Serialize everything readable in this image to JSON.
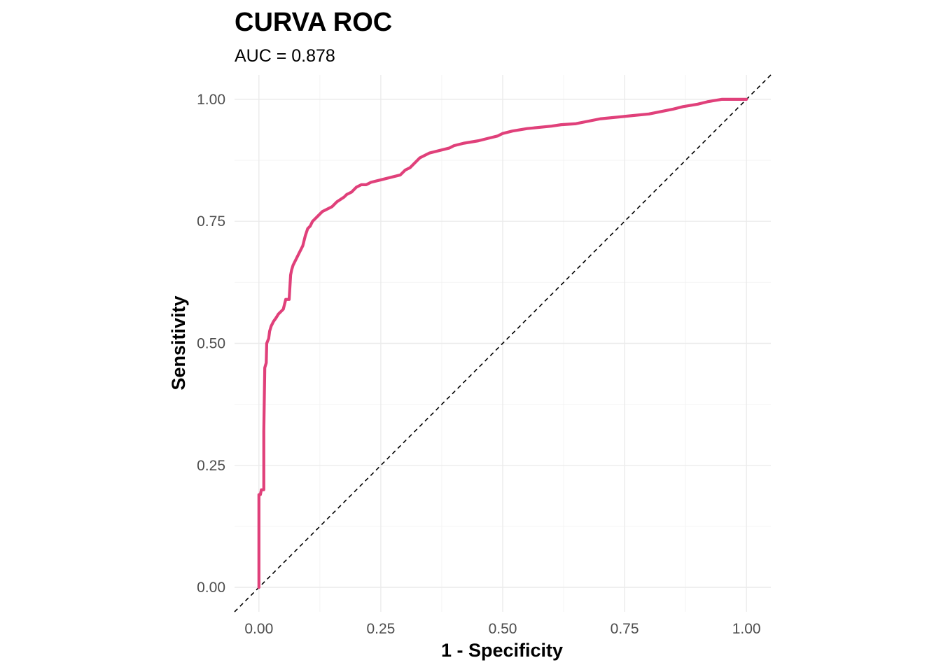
{
  "chart_data": {
    "type": "line",
    "title": "CURVA ROC",
    "subtitle": "AUC = 0.878",
    "xlabel": "1 - Specificity",
    "ylabel": "Sensitivity",
    "xlim": [
      -0.05,
      1.05
    ],
    "ylim": [
      -0.05,
      1.05
    ],
    "x_ticks": [
      0.0,
      0.25,
      0.5,
      0.75,
      1.0
    ],
    "x_tick_labels": [
      "0.00",
      "0.25",
      "0.50",
      "0.75",
      "1.00"
    ],
    "y_ticks": [
      0.0,
      0.25,
      0.5,
      0.75,
      1.0
    ],
    "y_tick_labels": [
      "0.00",
      "0.25",
      "0.50",
      "0.75",
      "1.00"
    ],
    "grid": true,
    "legend": "none",
    "colors": {
      "roc": "#e0407a",
      "reference": "#000000"
    },
    "series": [
      {
        "kind": "roc",
        "x": [
          0.0,
          0.0,
          0.003,
          0.005,
          0.01,
          0.01,
          0.012,
          0.015,
          0.016,
          0.018,
          0.02,
          0.022,
          0.025,
          0.03,
          0.035,
          0.04,
          0.05,
          0.055,
          0.062,
          0.065,
          0.067,
          0.07,
          0.075,
          0.08,
          0.09,
          0.095,
          0.1,
          0.105,
          0.11,
          0.12,
          0.13,
          0.14,
          0.15,
          0.16,
          0.175,
          0.18,
          0.19,
          0.2,
          0.21,
          0.22,
          0.23,
          0.25,
          0.27,
          0.29,
          0.3,
          0.31,
          0.32,
          0.33,
          0.35,
          0.37,
          0.39,
          0.4,
          0.42,
          0.45,
          0.47,
          0.49,
          0.5,
          0.52,
          0.55,
          0.6,
          0.62,
          0.65,
          0.7,
          0.75,
          0.8,
          0.85,
          0.87,
          0.9,
          0.92,
          0.95,
          1.0
        ],
        "y": [
          0.0,
          0.19,
          0.19,
          0.2,
          0.2,
          0.32,
          0.45,
          0.46,
          0.5,
          0.505,
          0.51,
          0.525,
          0.535,
          0.545,
          0.552,
          0.56,
          0.57,
          0.59,
          0.59,
          0.64,
          0.65,
          0.66,
          0.67,
          0.68,
          0.7,
          0.72,
          0.735,
          0.74,
          0.75,
          0.76,
          0.77,
          0.775,
          0.78,
          0.79,
          0.8,
          0.805,
          0.81,
          0.82,
          0.825,
          0.825,
          0.83,
          0.835,
          0.84,
          0.845,
          0.855,
          0.86,
          0.87,
          0.88,
          0.89,
          0.895,
          0.9,
          0.905,
          0.91,
          0.915,
          0.92,
          0.925,
          0.93,
          0.935,
          0.94,
          0.945,
          0.948,
          0.95,
          0.96,
          0.965,
          0.97,
          0.98,
          0.985,
          0.99,
          0.995,
          1.0,
          1.0
        ]
      },
      {
        "kind": "reference",
        "x": [
          -0.05,
          1.05
        ],
        "y": [
          -0.05,
          1.05
        ]
      }
    ]
  }
}
